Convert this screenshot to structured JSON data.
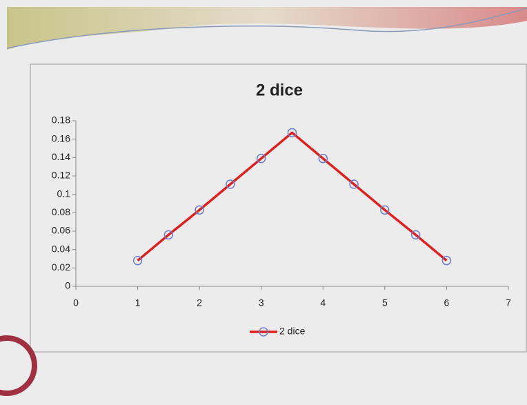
{
  "chart_data": {
    "type": "line",
    "title": "2 dice",
    "x": [
      1,
      1.5,
      2,
      2.5,
      3,
      3.5,
      4,
      4.5,
      5,
      5.5,
      6
    ],
    "series": [
      {
        "name": "2 dice",
        "color": "#e02020",
        "marker_color": "#6a7fd0",
        "values": [
          0.028,
          0.056,
          0.083,
          0.111,
          0.139,
          0.167,
          0.139,
          0.111,
          0.083,
          0.056,
          0.028
        ]
      }
    ],
    "xlim": [
      0,
      7
    ],
    "xticks": [
      0,
      1,
      2,
      3,
      4,
      5,
      6,
      7
    ],
    "ylim": [
      0,
      0.18
    ],
    "yticks": [
      0,
      0.02,
      0.04,
      0.06,
      0.08,
      0.1,
      0.12,
      0.14,
      0.16,
      0.18
    ],
    "legend": "bottom"
  }
}
